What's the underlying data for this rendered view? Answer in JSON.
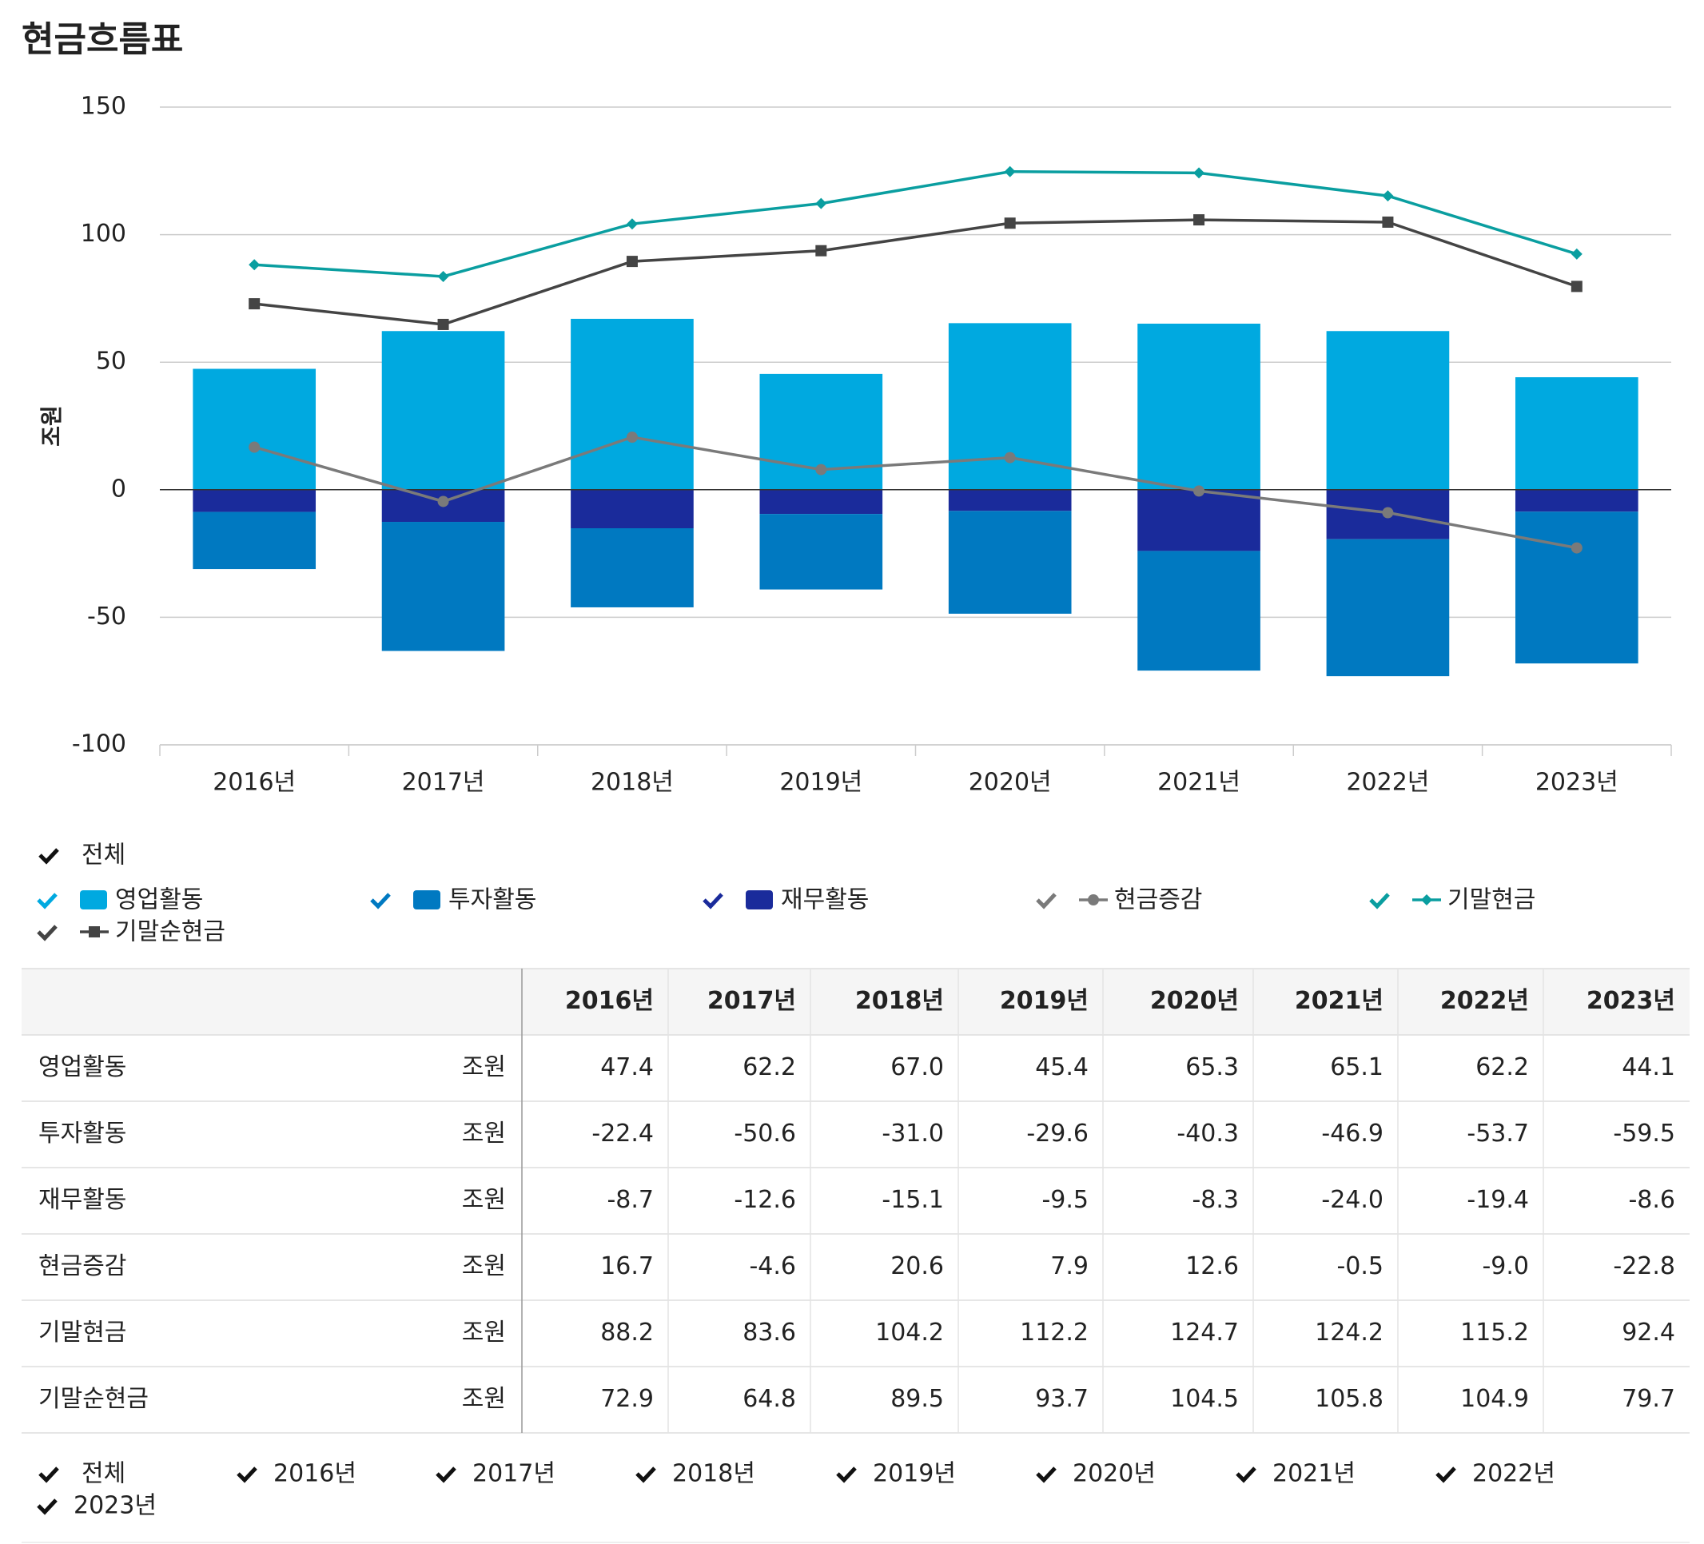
{
  "chart_data": {
    "type": "bar",
    "title": "현금흐름표",
    "y_label": "조원",
    "categories": [
      "2016년",
      "2017년",
      "2018년",
      "2019년",
      "2020년",
      "2021년",
      "2022년",
      "2023년"
    ],
    "ylim": [
      -100,
      150
    ],
    "yticks": [
      -100,
      -50,
      0,
      50,
      100,
      150
    ],
    "grid": true,
    "legend_all": "전체",
    "series": [
      {
        "name": "영업활동",
        "type": "bar",
        "color": "#00a9e0",
        "values": [
          47.4,
          62.2,
          67.0,
          45.4,
          65.3,
          65.1,
          62.2,
          44.1
        ]
      },
      {
        "name": "투자활동",
        "type": "bar",
        "color": "#0079c1",
        "values": [
          -22.4,
          -50.6,
          -31.0,
          -29.6,
          -40.3,
          -46.9,
          -53.7,
          -59.5
        ]
      },
      {
        "name": "재무활동",
        "type": "bar",
        "color": "#1a2b9b",
        "values": [
          -8.7,
          -12.6,
          -15.1,
          -9.5,
          -8.3,
          -24.0,
          -19.4,
          -8.6
        ]
      },
      {
        "name": "현금증감",
        "type": "line",
        "marker": "circle",
        "color": "#7a7a7a",
        "values": [
          16.7,
          -4.6,
          20.6,
          7.9,
          12.6,
          -0.5,
          -9.0,
          -22.8
        ]
      },
      {
        "name": "기말현금",
        "type": "line",
        "marker": "diamond",
        "color": "#0a9ea0",
        "values": [
          88.2,
          83.6,
          104.2,
          112.2,
          124.7,
          124.2,
          115.2,
          92.4
        ]
      },
      {
        "name": "기말순현금",
        "type": "line",
        "marker": "square",
        "color": "#444444",
        "values": [
          72.9,
          64.8,
          89.5,
          93.7,
          104.5,
          105.8,
          104.9,
          79.7
        ]
      }
    ]
  },
  "table": {
    "rows": [
      {
        "label": "영업활동",
        "unit": "조원",
        "values": [
          "47.4",
          "62.2",
          "67.0",
          "45.4",
          "65.3",
          "65.1",
          "62.2",
          "44.1"
        ]
      },
      {
        "label": "투자활동",
        "unit": "조원",
        "values": [
          "-22.4",
          "-50.6",
          "-31.0",
          "-29.6",
          "-40.3",
          "-46.9",
          "-53.7",
          "-59.5"
        ]
      },
      {
        "label": "재무활동",
        "unit": "조원",
        "values": [
          "-8.7",
          "-12.6",
          "-15.1",
          "-9.5",
          "-8.3",
          "-24.0",
          "-19.4",
          "-8.6"
        ]
      },
      {
        "label": "현금증감",
        "unit": "조원",
        "values": [
          "16.7",
          "-4.6",
          "20.6",
          "7.9",
          "12.6",
          "-0.5",
          "-9.0",
          "-22.8"
        ]
      },
      {
        "label": "기말현금",
        "unit": "조원",
        "values": [
          "88.2",
          "83.6",
          "104.2",
          "112.2",
          "124.7",
          "124.2",
          "115.2",
          "92.4"
        ]
      },
      {
        "label": "기말순현금",
        "unit": "조원",
        "values": [
          "72.9",
          "64.8",
          "89.5",
          "93.7",
          "104.5",
          "105.8",
          "104.9",
          "79.7"
        ]
      }
    ],
    "filter_all": "전체"
  }
}
